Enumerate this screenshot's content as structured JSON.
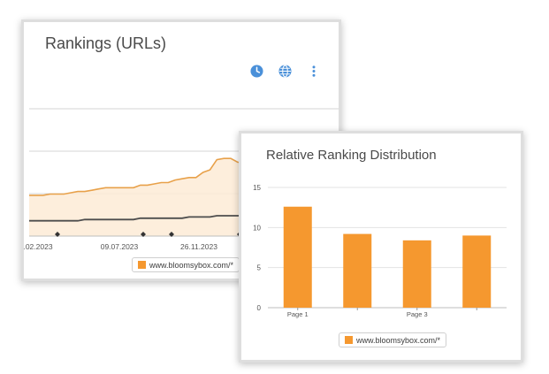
{
  "colors": {
    "accent": "#f5982f",
    "icon": "#4a90d9",
    "dark_series": "#4d4d4d"
  },
  "rankings_card": {
    "title": "Rankings (URLs)",
    "icons": [
      "clock-icon",
      "globe-icon",
      "more-vertical-icon"
    ],
    "legend": "www.bloomsybox.com/*"
  },
  "relative_card": {
    "title": "Relative Ranking Distribution",
    "legend": "www.bloomsybox.com/*"
  },
  "chart_data": [
    {
      "type": "area",
      "title": "Rankings (URLs)",
      "x_tick_labels": [
        ".02.2023",
        "09.07.2023",
        "26.11.2023"
      ],
      "series": [
        {
          "name": "www.bloomsybox.com/*",
          "values": [
            32,
            32,
            32,
            33,
            33,
            33,
            34,
            35,
            35,
            36,
            37,
            38,
            38,
            38,
            38,
            38,
            40,
            40,
            41,
            42,
            42,
            44,
            45,
            46,
            46,
            50,
            52,
            60,
            61,
            61,
            58,
            58,
            60,
            61,
            66,
            70,
            72,
            74,
            76,
            76,
            76,
            76,
            75,
            74,
            73
          ]
        },
        {
          "values": [
            12,
            12,
            12,
            12,
            12,
            12,
            12,
            12,
            13,
            13,
            13,
            13,
            13,
            13,
            13,
            13,
            14,
            14,
            14,
            14,
            14,
            14,
            14,
            15,
            15,
            15,
            15,
            16,
            16,
            16,
            16,
            16,
            17,
            17,
            17,
            17,
            17,
            18,
            18,
            18,
            18,
            18,
            18,
            18,
            18
          ]
        }
      ]
    },
    {
      "type": "bar",
      "title": "Relative Ranking Distribution",
      "categories": [
        "Page 1",
        "",
        "Page 3",
        ""
      ],
      "series": [
        {
          "name": "www.bloomsybox.com/*",
          "values": [
            12.6,
            9.2,
            8.4,
            9.0
          ]
        }
      ],
      "y_ticks": [
        "0",
        "5",
        "10",
        "15"
      ],
      "ylim": [
        0,
        15
      ],
      "grid": true
    }
  ]
}
